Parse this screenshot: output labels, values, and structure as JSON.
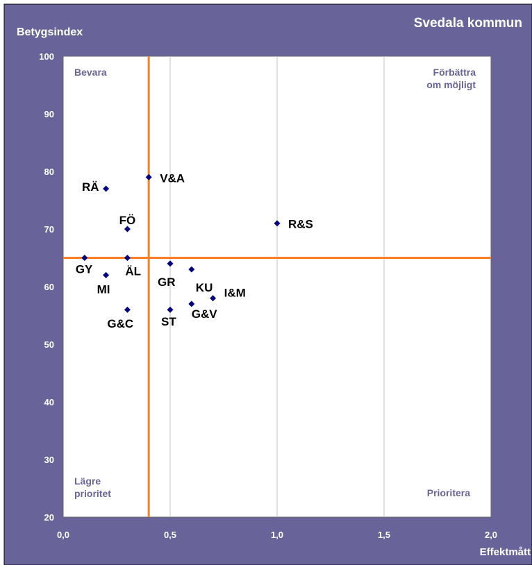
{
  "chart_data": {
    "type": "scatter",
    "title": "Svedala kommun",
    "xlabel": "Effektmått",
    "ylabel": "Betygsindex",
    "xlim": [
      0,
      2
    ],
    "ylim": [
      20,
      100
    ],
    "xticks": [
      "0,0",
      "0,5",
      "1,0",
      "1,5",
      "2,0"
    ],
    "xtick_values": [
      0,
      0.5,
      1.0,
      1.5,
      2.0
    ],
    "yticks": [
      "20",
      "30",
      "40",
      "50",
      "60",
      "70",
      "80",
      "90",
      "100"
    ],
    "ytick_values": [
      20,
      30,
      40,
      50,
      60,
      70,
      80,
      90,
      100
    ],
    "reference_lines": {
      "x": 0.4,
      "y": 65
    },
    "quadrant_labels": {
      "top_left": [
        "Bevara"
      ],
      "top_right": [
        "Förbättra",
        "om möjligt"
      ],
      "bottom_left": [
        "Lägre",
        "prioritet"
      ],
      "bottom_right": [
        "Prioritera"
      ]
    },
    "points": [
      {
        "label": "V&A",
        "x": 0.4,
        "y": 79
      },
      {
        "label": "RÄ",
        "x": 0.2,
        "y": 77
      },
      {
        "label": "R&S",
        "x": 1.0,
        "y": 71
      },
      {
        "label": "FÖ",
        "x": 0.3,
        "y": 70
      },
      {
        "label": "GY",
        "x": 0.1,
        "y": 65
      },
      {
        "label": "ÄL",
        "x": 0.3,
        "y": 65
      },
      {
        "label": "GR",
        "x": 0.5,
        "y": 64
      },
      {
        "label": "KU",
        "x": 0.6,
        "y": 63
      },
      {
        "label": "MI",
        "x": 0.2,
        "y": 62
      },
      {
        "label": "I&M",
        "x": 0.7,
        "y": 58
      },
      {
        "label": "G&V",
        "x": 0.6,
        "y": 57
      },
      {
        "label": "G&C",
        "x": 0.3,
        "y": 56
      },
      {
        "label": "ST",
        "x": 0.5,
        "y": 56
      }
    ],
    "grid": {
      "x": true,
      "y": false
    },
    "colors": {
      "frame": "#686499",
      "plot_bg": "#ffffff",
      "points": "#000080",
      "reference_lines": "#ff7f27",
      "gridlines": "#c0c0d0",
      "title_text": "#ffffff",
      "quadrant_text": "#686499",
      "axis_text": "#ffffff",
      "point_label_text": "#000000"
    }
  }
}
